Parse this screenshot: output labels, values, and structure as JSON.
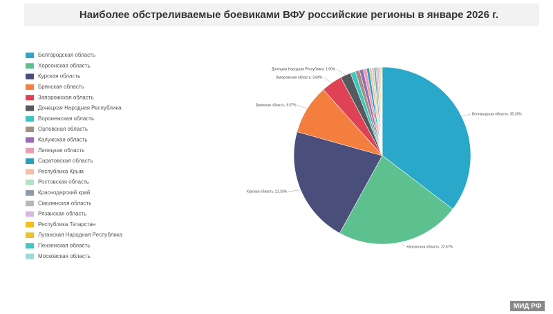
{
  "chart_data": {
    "type": "pie",
    "title": "Наиболее обстреливаемые боевиками ВФУ российские регионы в январе 2026 г.",
    "categories": [
      "Белгородская область",
      "Херсонская область",
      "Курская область",
      "Брянская область",
      "Запорожская область",
      "Донецкая Народная Республика",
      "Воронежская область",
      "Орловская область",
      "Калужская область",
      "Липецкая область",
      "Саратовская область",
      "Республика Крым",
      "Ростовская область",
      "Краснодарский край",
      "Смоленская область",
      "Рязанская область",
      "Республика Татарстан",
      "Луганская Народная Республика",
      "Пензенская область",
      "Московская область"
    ],
    "values": [
      35.33,
      22.67,
      21.33,
      9.07,
      3.84,
      1.9,
      0.9,
      0.8,
      0.7,
      0.6,
      0.5,
      0.45,
      0.4,
      0.35,
      0.3,
      0.25,
      0.2,
      0.15,
      0.11,
      0.15
    ],
    "value_labels": [
      "Белгородская область: 35.33%",
      "Херсонская область: 22.67%",
      "Курская область: 21.33%",
      "Брянская область: 9.07%",
      "Запорожская область: 3.84%",
      "Донецкая Народная Республика: 1.90%",
      null,
      null,
      null,
      null,
      null,
      null,
      null,
      null,
      null,
      null,
      null,
      null,
      null,
      null
    ],
    "colors": [
      "#29a8c9",
      "#5cc08f",
      "#4a4e7a",
      "#f47e3e",
      "#e04255",
      "#555a5e",
      "#3cc6c0",
      "#a09080",
      "#9b6bb5",
      "#e8a0b0",
      "#2aa0b8",
      "#f6c0a0",
      "#b8e0c8",
      "#909aa8",
      "#b8b8b8",
      "#d8b8e0",
      "#f0c020",
      "#e8c030",
      "#40c8c0",
      "#a0d8e0"
    ],
    "legend": "left"
  },
  "watermark": "МИД РФ"
}
